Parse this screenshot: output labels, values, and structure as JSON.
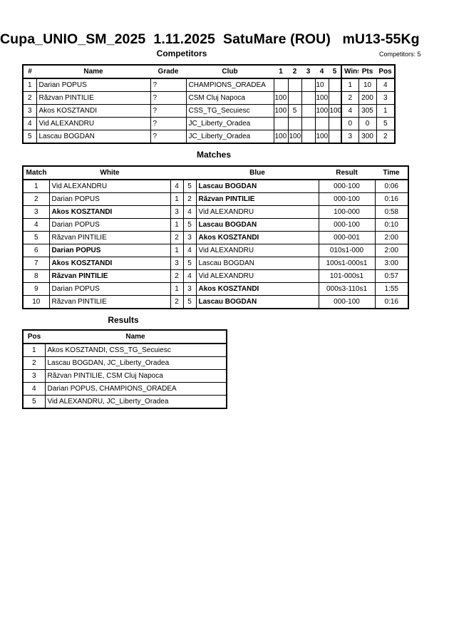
{
  "title": "Cupa_UNIO_SM_2025  1.11.2025  SatuMare (ROU)   mU13-55Kg",
  "competitors": {
    "heading": "Competitors",
    "count_label": "Competitors: 5",
    "columns": [
      "#",
      "Name",
      "Grade",
      "Club",
      "1",
      "2",
      "3",
      "4",
      "5",
      "Wins",
      "Pts",
      "Pos"
    ],
    "rows": [
      [
        "1",
        "Darian POPUS",
        "?",
        "CHAMPIONS_ORADEA",
        "",
        "",
        "",
        "10",
        "",
        "1",
        "10",
        "4"
      ],
      [
        "2",
        "Răzvan PINTILIE",
        "?",
        "CSM Cluj Napoca",
        "100",
        "",
        "",
        "100",
        "",
        "2",
        "200",
        "3"
      ],
      [
        "3",
        "Akos KOSZTANDI",
        "?",
        "CSS_TG_Secuiesc",
        "100",
        "5",
        "",
        "100",
        "100",
        "4",
        "305",
        "1"
      ],
      [
        "4",
        "Vid ALEXANDRU",
        "?",
        "JC_Liberty_Oradea",
        "",
        "",
        "",
        "",
        "",
        "0",
        "0",
        "5"
      ],
      [
        "5",
        "Lascau BOGDAN",
        "?",
        "JC_Liberty_Oradea",
        "100",
        "100",
        "",
        "100",
        "",
        "3",
        "300",
        "2"
      ]
    ]
  },
  "matches": {
    "heading": "Matches",
    "columns": [
      "Match",
      "White",
      "Blue",
      "Result",
      "Time"
    ],
    "rows": [
      {
        "match": "1",
        "white": "Vid ALEXANDRU",
        "wn": "4",
        "bn": "5",
        "blue": "Lascau BOGDAN",
        "result": "000-100",
        "time": "0:06",
        "winner": "blue"
      },
      {
        "match": "2",
        "white": "Darian POPUS",
        "wn": "1",
        "bn": "2",
        "blue": "Răzvan PINTILIE",
        "result": "000-100",
        "time": "0:16",
        "winner": "blue"
      },
      {
        "match": "3",
        "white": "Akos KOSZTANDI",
        "wn": "3",
        "bn": "4",
        "blue": "Vid ALEXANDRU",
        "result": "100-000",
        "time": "0:58",
        "winner": "white"
      },
      {
        "match": "4",
        "white": "Darian POPUS",
        "wn": "1",
        "bn": "5",
        "blue": "Lascau BOGDAN",
        "result": "000-100",
        "time": "0:10",
        "winner": "blue"
      },
      {
        "match": "5",
        "white": "Răzvan PINTILIE",
        "wn": "2",
        "bn": "3",
        "blue": "Akos KOSZTANDI",
        "result": "000-001",
        "time": "2:00",
        "winner": "blue"
      },
      {
        "match": "6",
        "white": "Darian POPUS",
        "wn": "1",
        "bn": "4",
        "blue": "Vid ALEXANDRU",
        "result": "010s1-000",
        "time": "2:00",
        "winner": "white"
      },
      {
        "match": "7",
        "white": "Akos KOSZTANDI",
        "wn": "3",
        "bn": "5",
        "blue": "Lascau BOGDAN",
        "result": "100s1-000s1",
        "time": "3:00",
        "winner": "white"
      },
      {
        "match": "8",
        "white": "Răzvan PINTILIE",
        "wn": "2",
        "bn": "4",
        "blue": "Vid ALEXANDRU",
        "result": "101-000s1",
        "time": "0:57",
        "winner": "white"
      },
      {
        "match": "9",
        "white": "Darian POPUS",
        "wn": "1",
        "bn": "3",
        "blue": "Akos KOSZTANDI",
        "result": "000s3-110s1",
        "time": "1:55",
        "winner": "blue"
      },
      {
        "match": "10",
        "white": "Răzvan PINTILIE",
        "wn": "2",
        "bn": "5",
        "blue": "Lascau BOGDAN",
        "result": "000-100",
        "time": "0:16",
        "winner": "blue"
      }
    ]
  },
  "results": {
    "heading": "Results",
    "columns": [
      "Pos",
      "Name"
    ],
    "rows": [
      [
        "1",
        "Akos KOSZTANDI, CSS_TG_Secuiesc"
      ],
      [
        "2",
        "Lascau BOGDAN, JC_Liberty_Oradea"
      ],
      [
        "3",
        "Răzvan PINTILIE, CSM Cluj Napoca"
      ],
      [
        "4",
        "Darian POPUS, CHAMPIONS_ORADEA"
      ],
      [
        "5",
        "Vid ALEXANDRU, JC_Liberty_Oradea"
      ]
    ]
  }
}
